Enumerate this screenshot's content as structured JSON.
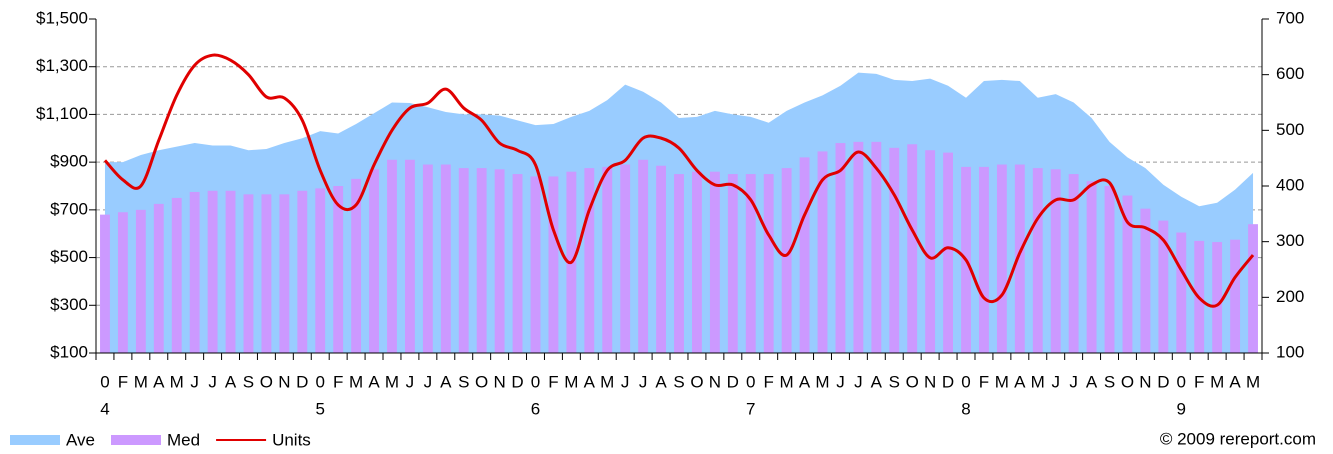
{
  "chart_data": {
    "type": "combo",
    "categories": [
      "0",
      "F",
      "M",
      "A",
      "M",
      "J",
      "J",
      "A",
      "S",
      "O",
      "N",
      "D",
      "0",
      "F",
      "M",
      "A",
      "M",
      "J",
      "J",
      "A",
      "S",
      "O",
      "N",
      "D",
      "0",
      "F",
      "M",
      "A",
      "M",
      "J",
      "J",
      "A",
      "S",
      "O",
      "N",
      "D",
      "0",
      "F",
      "M",
      "A",
      "M",
      "J",
      "J",
      "A",
      "S",
      "O",
      "N",
      "D",
      "0",
      "F",
      "M",
      "A",
      "M",
      "J",
      "J",
      "A",
      "S",
      "O",
      "N",
      "D",
      "0",
      "F",
      "M",
      "A",
      "M"
    ],
    "x_sublabels": [
      "4",
      null,
      null,
      null,
      null,
      null,
      null,
      null,
      null,
      null,
      null,
      null,
      "5",
      null,
      null,
      null,
      null,
      null,
      null,
      null,
      null,
      null,
      null,
      null,
      "6",
      null,
      null,
      null,
      null,
      null,
      null,
      null,
      null,
      null,
      null,
      null,
      "7",
      null,
      null,
      null,
      null,
      null,
      null,
      null,
      null,
      null,
      null,
      null,
      "8",
      null,
      null,
      null,
      null,
      null,
      null,
      null,
      null,
      null,
      null,
      null,
      "9",
      null,
      null,
      null,
      null
    ],
    "series": [
      {
        "name": "Ave",
        "type": "area",
        "color": "#99ccff",
        "values": [
          900,
          900,
          930,
          950,
          965,
          980,
          970,
          970,
          950,
          955,
          980,
          1000,
          1030,
          1020,
          1060,
          1105,
          1150,
          1148,
          1130,
          1110,
          1100,
          1100,
          1095,
          1075,
          1055,
          1060,
          1090,
          1115,
          1160,
          1225,
          1195,
          1150,
          1085,
          1090,
          1115,
          1100,
          1090,
          1065,
          1115,
          1150,
          1180,
          1220,
          1275,
          1270,
          1245,
          1240,
          1250,
          1220,
          1170,
          1240,
          1245,
          1240,
          1170,
          1185,
          1150,
          1085,
          985,
          920,
          875,
          805,
          755,
          715,
          730,
          785,
          855
        ]
      },
      {
        "name": "Med",
        "type": "bar",
        "color": "#cc99ff",
        "values": [
          680,
          690,
          700,
          725,
          750,
          775,
          780,
          780,
          765,
          765,
          765,
          780,
          790,
          800,
          830,
          870,
          910,
          910,
          890,
          890,
          875,
          875,
          870,
          850,
          840,
          840,
          860,
          875,
          880,
          890,
          910,
          885,
          850,
          860,
          860,
          850,
          850,
          850,
          875,
          920,
          945,
          980,
          985,
          985,
          960,
          975,
          950,
          940,
          880,
          880,
          890,
          890,
          875,
          870,
          850,
          820,
          800,
          760,
          705,
          655,
          605,
          570,
          565,
          575,
          640
        ]
      },
      {
        "name": "Units",
        "type": "line",
        "axis": "y2",
        "color": "#e00000",
        "values": [
          446,
          411,
          400,
          482,
          563,
          617,
          635,
          626,
          600,
          560,
          558,
          518,
          428,
          366,
          366,
          438,
          500,
          540,
          549,
          574,
          540,
          518,
          477,
          464,
          438,
          321,
          263,
          357,
          428,
          446,
          486,
          486,
          468,
          428,
          402,
          402,
          375,
          312,
          276,
          348,
          411,
          428,
          461,
          432,
          384,
          321,
          271,
          289,
          267,
          199,
          204,
          280,
          342,
          375,
          375,
          402,
          406,
          335,
          325,
          303,
          249,
          199,
          186,
          236,
          276
        ]
      }
    ],
    "ylim": [
      100,
      1500
    ],
    "yticks": [
      {
        "value": 100,
        "label": "$100"
      },
      {
        "value": 300,
        "label": "$300"
      },
      {
        "value": 500,
        "label": "$500"
      },
      {
        "value": 700,
        "label": "$700"
      },
      {
        "value": 900,
        "label": "$900"
      },
      {
        "value": 1100,
        "label": "$1,100"
      },
      {
        "value": 1300,
        "label": "$1,300"
      },
      {
        "value": 1500,
        "label": "$1,500"
      }
    ],
    "y2lim": [
      100,
      700
    ],
    "y2ticks": [
      100,
      200,
      300,
      400,
      500,
      600,
      700
    ],
    "grid": true,
    "legend": "bottom-left",
    "copyright": "© 2009 rereport.com"
  }
}
